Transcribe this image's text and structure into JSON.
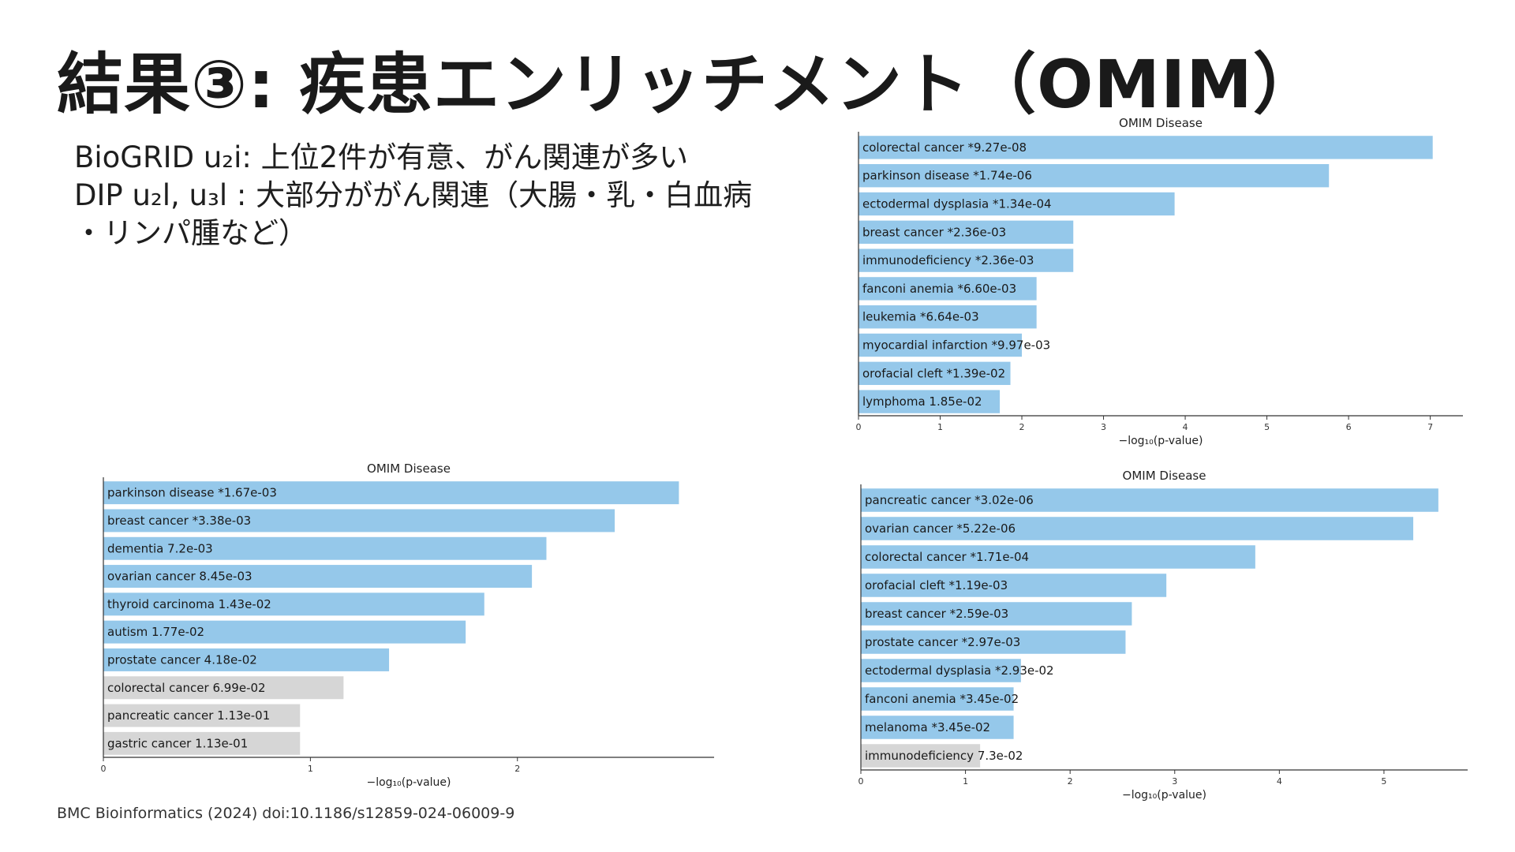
{
  "slide": {
    "title": "結果③: 疾患エンリッチメント（OMIM）",
    "bullets": [
      "BioGRID u₂i: 上位2件が有意、がん関連が多い",
      "DIP u₂l, u₃l : 大部分ががん関連（大腸・乳・白血病",
      "・リンパ腫など）"
    ],
    "citation": "BMC Bioinformatics (2024) doi:10.1186/s12859-024-06009-9"
  },
  "colors": {
    "significant": "#95c8ea",
    "not_significant": "#d6d6d6",
    "axis": "#333333"
  },
  "chart_data": [
    {
      "id": "chart-top",
      "type": "bar",
      "orientation": "horizontal",
      "title": "OMIM Disease",
      "xlabel": "−log₁₀(p-value)",
      "xlim": [
        0,
        7.4
      ],
      "xticks": [
        0,
        1,
        2,
        3,
        4,
        5,
        6,
        7
      ],
      "bars": [
        {
          "label": "colorectal cancer  *9.27e-08",
          "value": 7.03,
          "significant": true
        },
        {
          "label": "parkinson disease  *1.74e-06",
          "value": 5.76,
          "significant": true
        },
        {
          "label": "ectodermal dysplasia  *1.34e-04",
          "value": 3.87,
          "significant": true
        },
        {
          "label": "breast cancer  *2.36e-03",
          "value": 2.63,
          "significant": true
        },
        {
          "label": "immunodeficiency  *2.36e-03",
          "value": 2.63,
          "significant": true
        },
        {
          "label": "fanconi anemia  *6.60e-03",
          "value": 2.18,
          "significant": true
        },
        {
          "label": "leukemia  *6.64e-03",
          "value": 2.18,
          "significant": true
        },
        {
          "label": "myocardial infarction  *9.97e-03",
          "value": 2.0,
          "significant": true
        },
        {
          "label": "orofacial cleft  *1.39e-02",
          "value": 1.86,
          "significant": true
        },
        {
          "label": "lymphoma  1.85e-02",
          "value": 1.73,
          "significant": true
        }
      ]
    },
    {
      "id": "chart-left",
      "type": "bar",
      "orientation": "horizontal",
      "title": "OMIM Disease",
      "xlabel": "−log₁₀(p-value)",
      "xlim": [
        0,
        2.95
      ],
      "xticks": [
        0,
        1,
        2
      ],
      "bars": [
        {
          "label": "parkinson disease  *1.67e-03",
          "value": 2.78,
          "significant": true
        },
        {
          "label": "breast cancer  *3.38e-03",
          "value": 2.47,
          "significant": true
        },
        {
          "label": "dementia  7.2e-03",
          "value": 2.14,
          "significant": true
        },
        {
          "label": "ovarian cancer  8.45e-03",
          "value": 2.07,
          "significant": true
        },
        {
          "label": "thyroid carcinoma  1.43e-02",
          "value": 1.84,
          "significant": true
        },
        {
          "label": "autism  1.77e-02",
          "value": 1.75,
          "significant": true
        },
        {
          "label": "prostate cancer  4.18e-02",
          "value": 1.38,
          "significant": true
        },
        {
          "label": "colorectal cancer  6.99e-02",
          "value": 1.16,
          "significant": false
        },
        {
          "label": "pancreatic cancer  1.13e-01",
          "value": 0.95,
          "significant": false
        },
        {
          "label": "gastric cancer  1.13e-01",
          "value": 0.95,
          "significant": false
        }
      ]
    },
    {
      "id": "chart-right",
      "type": "bar",
      "orientation": "horizontal",
      "title": "OMIM Disease",
      "xlabel": "−log₁₀(p-value)",
      "xlim": [
        0,
        5.8
      ],
      "xticks": [
        0,
        1,
        2,
        3,
        4,
        5
      ],
      "bars": [
        {
          "label": "pancreatic cancer  *3.02e-06",
          "value": 5.52,
          "significant": true
        },
        {
          "label": "ovarian cancer  *5.22e-06",
          "value": 5.28,
          "significant": true
        },
        {
          "label": "colorectal cancer  *1.71e-04",
          "value": 3.77,
          "significant": true
        },
        {
          "label": "orofacial cleft  *1.19e-03",
          "value": 2.92,
          "significant": true
        },
        {
          "label": "breast cancer  *2.59e-03",
          "value": 2.59,
          "significant": true
        },
        {
          "label": "prostate cancer  *2.97e-03",
          "value": 2.53,
          "significant": true
        },
        {
          "label": "ectodermal dysplasia  *2.93e-02",
          "value": 1.53,
          "significant": true
        },
        {
          "label": "fanconi anemia  *3.45e-02",
          "value": 1.46,
          "significant": true
        },
        {
          "label": "melanoma  *3.45e-02",
          "value": 1.46,
          "significant": true
        },
        {
          "label": "immunodeficiency  7.3e-02",
          "value": 1.14,
          "significant": false
        }
      ]
    }
  ]
}
